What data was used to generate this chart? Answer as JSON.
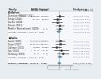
{
  "col_headers_left": [
    "Study",
    "FeNO",
    "",
    "Control",
    ""
  ],
  "col_headers_right": [
    "Hedges g"
  ],
  "sections": [
    {
      "label": "Children",
      "studies": [
        {
          "name": "Donohue (BASALT) 2021",
          "fn": "5",
          "fm": "1.56",
          "fsd": "1.02",
          "cn": "5",
          "cm": "1.12",
          "csd": "0.99",
          "g": 0.07,
          "ci_lo": -0.25,
          "ci_hi": 0.4,
          "is_subtotal": false
        },
        {
          "name": "Petsky (2016)",
          "fn": "",
          "fm": "80.7",
          "fsd": "16.7",
          "cn": "",
          "cm": "84.1",
          "csd": "19.2",
          "g": -0.19,
          "ci_lo": -0.55,
          "ci_hi": 0.17,
          "is_subtotal": false
        },
        {
          "name": "Szefler (2008)",
          "fn": "",
          "fm": "",
          "fsd": "",
          "cn": "",
          "cm": "",
          "csd": "",
          "g": -0.19,
          "ci_lo": -0.65,
          "ci_hi": 0.26,
          "is_subtotal": false
        },
        {
          "name": "Fritsch (2011)",
          "fn": "",
          "fm": "",
          "fsd": "",
          "cn": "",
          "cm": "",
          "csd": "",
          "g": 0.04,
          "ci_lo": -0.33,
          "ci_hi": 0.42,
          "is_subtotal": false
        },
        {
          "name": "Moeller (Australasian) (2009)",
          "fn": "",
          "fm": "88",
          "fsd": "17",
          "cn": "",
          "cm": "88",
          "csd": "15",
          "g": 0.01,
          "ci_lo": -0.26,
          "ci_hi": 0.28,
          "is_subtotal": false
        },
        {
          "name": "Subtotal (I-squared = 0.0%, p = 0.95)",
          "fn": "",
          "fm": "",
          "fsd": "",
          "cn": "",
          "cm": "",
          "csd": "",
          "g": -0.04,
          "ci_lo": -0.22,
          "ci_hi": 0.14,
          "is_subtotal": true
        }
      ]
    },
    {
      "label": "Adults",
      "studies": [
        {
          "name": "Smith (2005)",
          "fn": "46",
          "fm": "-0.001",
          "fsd": "0.083",
          "cn": "48",
          "cm": "-0.009",
          "csd": "0.083",
          "g": 0.1,
          "ci_lo": -0.3,
          "ci_hi": 0.49,
          "is_subtotal": false
        },
        {
          "name": "Shaw (2007)",
          "fn": "38",
          "fm": "82.5",
          "fsd": "13.1",
          "cn": "40",
          "cm": "80.9",
          "csd": "14.6",
          "g": 0.11,
          "ci_lo": -0.33,
          "ci_hi": 0.55,
          "is_subtotal": false
        },
        {
          "name": "Calhoun (2012)",
          "fn": "",
          "fm": "1.98",
          "fsd": "0.48",
          "cn": "",
          "cm": "2.11",
          "csd": "0.54",
          "g": -0.25,
          "ci_lo": -0.65,
          "ci_hi": 0.15,
          "is_subtotal": false
        },
        {
          "name": "Syk (2013)",
          "fn": "7",
          "fm": "72",
          "fsd": "11",
          "cn": "7",
          "cm": "70",
          "csd": "10",
          "g": 0.19,
          "ci_lo": -0.46,
          "ci_hi": 0.83,
          "is_subtotal": false
        },
        {
          "name": "Honkoop (2019)",
          "fn": "",
          "fm": "79",
          "fsd": "14",
          "cn": "",
          "cm": "74",
          "csd": "18",
          "g": 0.31,
          "ci_lo": -0.18,
          "ci_hi": 0.79,
          "is_subtotal": false
        },
        {
          "name": "Subtotal (I-squared = 0.0%, p = 0.78)",
          "fn": "",
          "fm": "",
          "fsd": "",
          "cn": "",
          "cm": "",
          "csd": "",
          "g": 0.07,
          "ci_lo": -0.14,
          "ci_hi": 0.28,
          "is_subtotal": true
        }
      ]
    }
  ],
  "overall": {
    "name": "Overall (I-squared = 0.0%, p = 0.89)",
    "g": 0.01,
    "ci_lo": -0.13,
    "ci_hi": 0.16
  },
  "xlim": [
    -1.0,
    1.2
  ],
  "xticks": [
    -1,
    0,
    1
  ],
  "xtick_labels": [
    "-1",
    "0",
    "1"
  ],
  "bg_color": "#e8edf2",
  "plot_bg": "#ffffff",
  "diamond_color": "#5588bb",
  "ci_color": "#333333",
  "marker_color": "#333333",
  "text_color": "#222222",
  "section_color": "#222222",
  "header_color": "#444444",
  "right_text_color": "#555577",
  "divider_color": "#aaaaaa",
  "note_text": "Favours FeNO       Favours Control"
}
